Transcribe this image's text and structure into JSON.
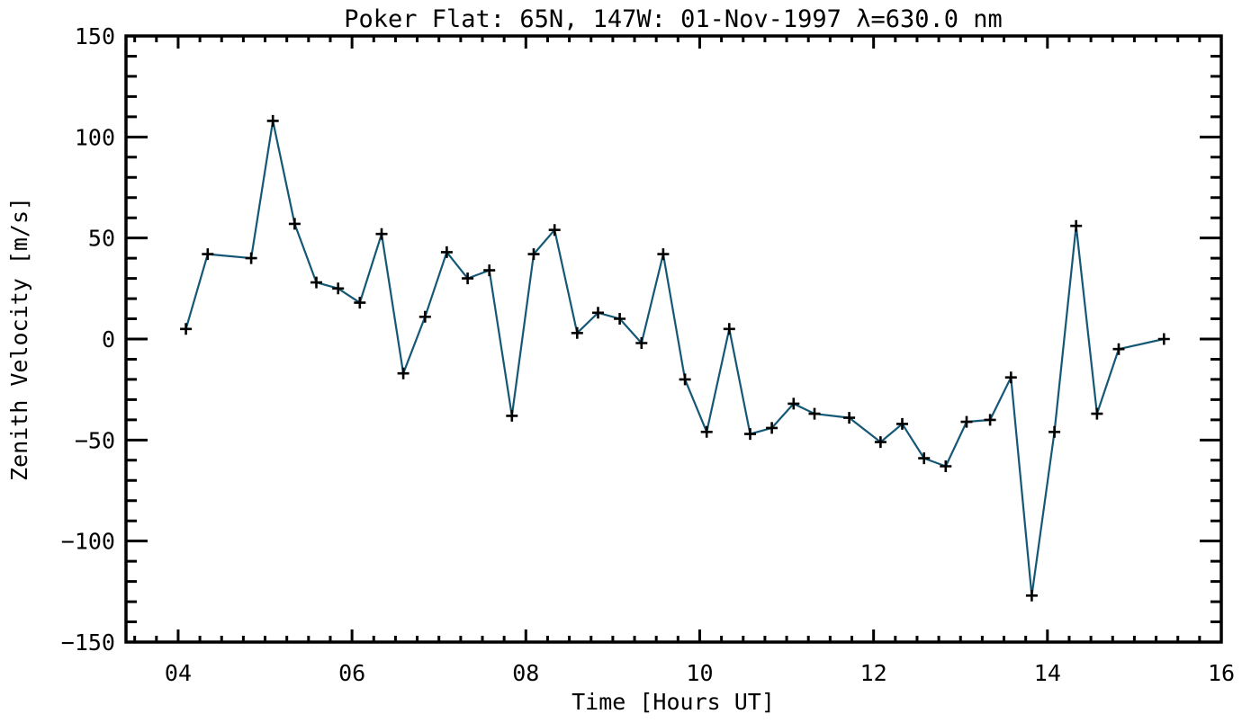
{
  "figure": {
    "background": "#ffffff"
  },
  "chart_data": {
    "type": "line",
    "title": "Poker Flat: 65N, 147W: 01-Nov-1997 λ=630.0 nm",
    "xlabel": "Time [Hours UT]",
    "ylabel": "Zenith Velocity [m/s]",
    "xlim": [
      3.4,
      16.0
    ],
    "ylim": [
      -150,
      150
    ],
    "grid": false,
    "legend": "none",
    "line_color": "#155876",
    "marker": "plus",
    "marker_color": "#000000",
    "axis_color": "#000000",
    "x": [
      4.09,
      4.34,
      4.84,
      5.09,
      5.34,
      5.59,
      5.84,
      6.09,
      6.34,
      6.59,
      6.84,
      7.09,
      7.33,
      7.58,
      7.84,
      8.09,
      8.33,
      8.59,
      8.83,
      9.08,
      9.33,
      9.58,
      9.83,
      10.08,
      10.34,
      10.58,
      10.83,
      11.08,
      11.32,
      11.72,
      12.08,
      12.33,
      12.58,
      12.83,
      13.07,
      13.34,
      13.58,
      13.82,
      14.08,
      14.33,
      14.57,
      14.82,
      15.34
    ],
    "y": [
      5,
      42,
      40,
      108,
      57,
      28,
      25,
      18,
      52,
      -17,
      11,
      43,
      30,
      34,
      -38,
      42,
      54,
      3,
      13,
      10,
      -2,
      42,
      -20,
      -46,
      5,
      -47,
      -44,
      -32,
      -37,
      -39,
      -51,
      -42,
      -59,
      -63,
      -41,
      -40,
      -19,
      -127,
      -46,
      56,
      -37,
      -5,
      0
    ],
    "xticks": {
      "values": [
        4,
        6,
        8,
        10,
        12,
        14,
        16
      ],
      "labels": [
        "04",
        "06",
        "08",
        "10",
        "12",
        "14",
        "16"
      ]
    },
    "yticks": {
      "values": [
        -150,
        -100,
        -50,
        0,
        50,
        100,
        150
      ],
      "labels": [
        "−150",
        "−100",
        "−50",
        "0",
        "50",
        "100",
        "150"
      ]
    },
    "minor_x_step": 0.25,
    "minor_y_step": 10
  }
}
